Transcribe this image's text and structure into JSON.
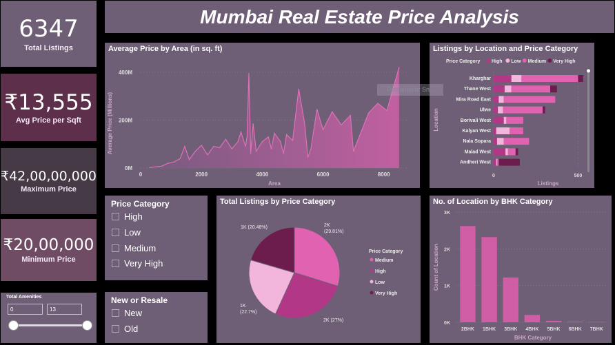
{
  "title": "Mumbai Real Estate Price Analysis",
  "kpis": {
    "total_listings": {
      "value": "6347",
      "label": "Total Listings"
    },
    "avg_price_sqft": {
      "value": "₹13,555",
      "label": "Avg Price per Sqft"
    },
    "max_price": {
      "value": "₹42,00,00,000",
      "label": "Maximum Price"
    },
    "min_price": {
      "value": "₹20,00,000",
      "label": "Minimum Price"
    }
  },
  "amenities_slicer": {
    "title": "Total Amenities",
    "min": "0",
    "max": "13"
  },
  "price_category_slicer": {
    "title": "Price Category",
    "options": [
      "High",
      "Low",
      "Medium",
      "Very High"
    ]
  },
  "resale_slicer": {
    "title": "New or Resale",
    "options": [
      "New",
      "Old"
    ]
  },
  "tooltip_ghost": "Rectangular Sn...",
  "colors": {
    "medium": "#e062b0",
    "high": "#b23786",
    "low": "#f2b6dc",
    "very_high": "#6c1d4e",
    "bar": "#d05ea6",
    "panel": "#6e5f76"
  },
  "chart_data": [
    {
      "type": "area",
      "title": "Average Price by Area (in sq. ft)",
      "xlabel": "Area",
      "ylabel": "Average Price (Millions)",
      "xticks": [
        "0",
        "2000",
        "4000",
        "6000",
        "8000"
      ],
      "yticks": [
        "0M",
        "200M",
        "400M"
      ],
      "xlim": [
        0,
        8800
      ],
      "ylim": [
        0,
        460
      ],
      "x": [
        300,
        700,
        900,
        1100,
        1300,
        1450,
        1600,
        1800,
        2000,
        2200,
        2400,
        2600,
        2800,
        3000,
        3200,
        3300,
        3450,
        3500,
        3560,
        3620,
        3700,
        3800,
        4000,
        4200,
        4300,
        4400,
        4600,
        4700,
        4800,
        5000,
        5200,
        5400,
        5500,
        5600,
        5800,
        6000,
        6300,
        6600,
        6900,
        7000,
        7500,
        7800,
        8100,
        8500
      ],
      "y": [
        2,
        8,
        20,
        25,
        40,
        90,
        35,
        70,
        95,
        55,
        90,
        85,
        120,
        80,
        110,
        150,
        90,
        130,
        395,
        60,
        185,
        70,
        110,
        130,
        80,
        145,
        110,
        60,
        140,
        115,
        330,
        180,
        45,
        80,
        245,
        160,
        235,
        180,
        220,
        70,
        230,
        270,
        240,
        420
      ]
    },
    {
      "type": "bar",
      "title": "Listings by Location and Price Category",
      "legend_title": "Price Category",
      "legend_position": "top",
      "xlabel": "Listings",
      "ylabel": "Location",
      "xticks": [
        "0",
        "500"
      ],
      "xlim": [
        0,
        580
      ],
      "categories": [
        "Kharghar",
        "Thane West",
        "Mira Road East",
        "Ulwe",
        "Borivali West",
        "Kalyan West",
        "Nala Sopara",
        "Malad West",
        "Andheri West"
      ],
      "series": [
        {
          "name": "High",
          "values": [
            105,
            65,
            30,
            25,
            60,
            15,
            20,
            70,
            15
          ]
        },
        {
          "name": "Low",
          "values": [
            60,
            40,
            30,
            30,
            15,
            80,
            40,
            15,
            5
          ]
        },
        {
          "name": "Medium",
          "values": [
            335,
            230,
            305,
            235,
            100,
            80,
            150,
            45,
            10
          ]
        },
        {
          "name": "Very High",
          "values": [
            30,
            40,
            0,
            15,
            0,
            0,
            0,
            15,
            125
          ]
        }
      ]
    },
    {
      "type": "pie",
      "title": "Total Listings by Price Category",
      "legend_title": "Price Category",
      "legend_position": "right",
      "legend": [
        "Medium",
        "High",
        "Low",
        "Very High"
      ],
      "slices": [
        {
          "name": "Medium",
          "value": 29.81,
          "label": "2K",
          "pct": "(29.81%)"
        },
        {
          "name": "High",
          "value": 27.0,
          "label": "2K (27%)",
          "pct": ""
        },
        {
          "name": "Low",
          "value": 22.7,
          "label": "1K",
          "pct": "(22.7%)"
        },
        {
          "name": "Very High",
          "value": 20.48,
          "label": "1K (20.48%)",
          "pct": ""
        }
      ]
    },
    {
      "type": "bar",
      "title": "No. of Location by BHK Category",
      "xlabel": "BHK Category",
      "ylabel": "Count of Location",
      "yticks": [
        "0K",
        "1K",
        "2K",
        "3K"
      ],
      "ylim": [
        0,
        3000
      ],
      "categories": [
        "2BHK",
        "1BHK",
        "3BHK",
        "4BHK",
        "5BHK",
        "6BHK",
        "7BHK"
      ],
      "values": [
        2620,
        2320,
        1220,
        200,
        40,
        15,
        8
      ]
    }
  ]
}
